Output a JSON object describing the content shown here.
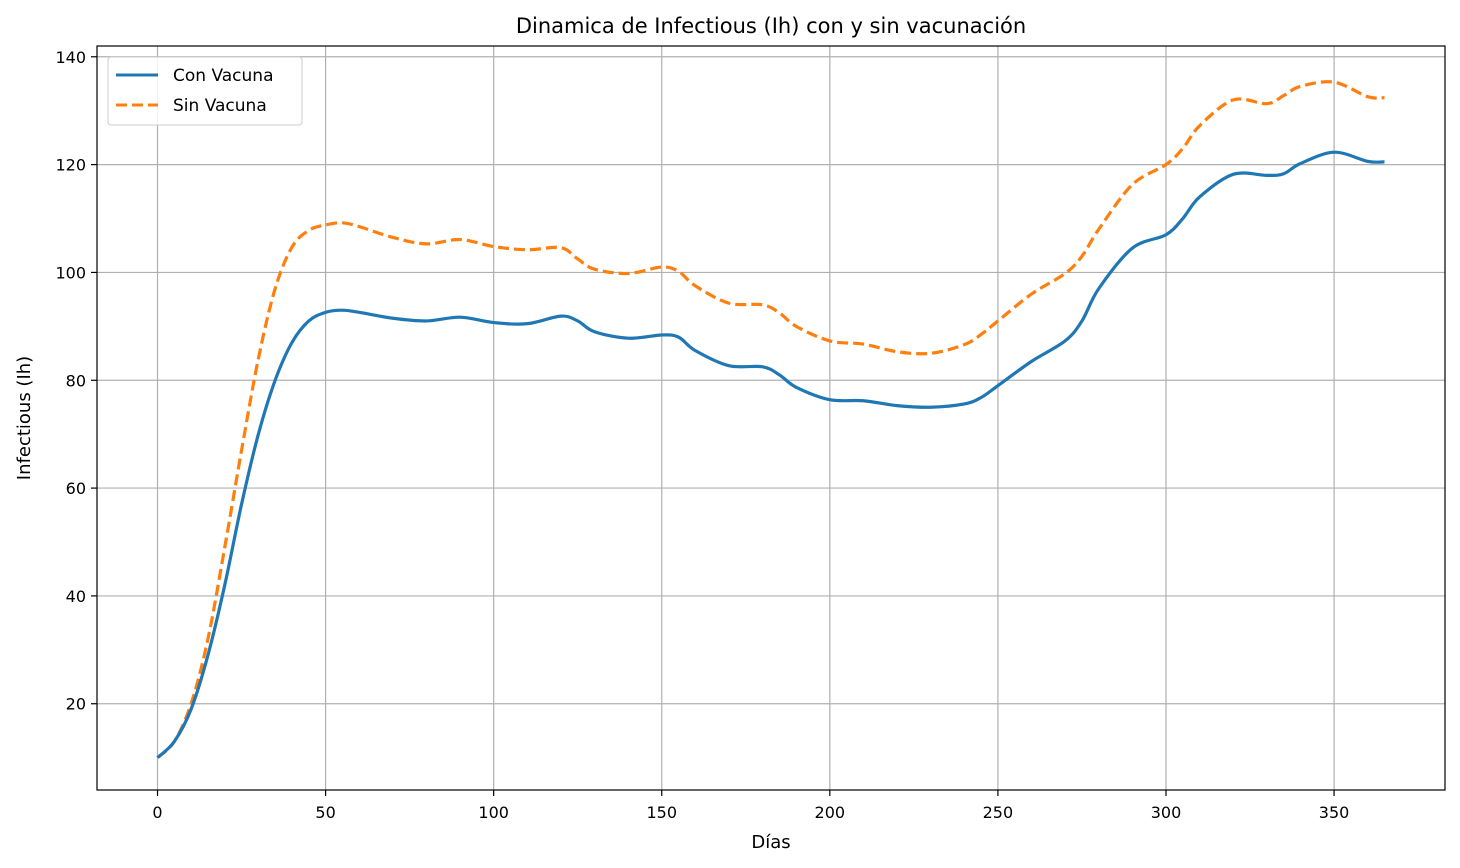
{
  "chart_data": {
    "type": "line",
    "title": "Dinamica de Infectious (Ih) con y sin vacunación",
    "xlabel": "Días",
    "ylabel": "Infectious (Ih)",
    "xlim": [
      -18,
      383
    ],
    "ylim": [
      4,
      142
    ],
    "xticks": [
      0,
      50,
      100,
      150,
      200,
      250,
      300,
      350
    ],
    "yticks": [
      20,
      40,
      60,
      80,
      100,
      120,
      140
    ],
    "grid": true,
    "legend_position": "top-left",
    "series": [
      {
        "name": "Con Vacuna",
        "color": "#1f77b4",
        "style": "solid",
        "x": [
          0,
          5,
          10,
          15,
          20,
          25,
          30,
          35,
          40,
          45,
          50,
          55,
          60,
          70,
          80,
          90,
          100,
          110,
          120,
          125,
          130,
          140,
          150,
          155,
          160,
          170,
          180,
          185,
          190,
          200,
          210,
          220,
          230,
          240,
          245,
          250,
          260,
          270,
          275,
          280,
          290,
          300,
          305,
          310,
          320,
          330,
          335,
          340,
          350,
          360,
          365
        ],
        "y": [
          10,
          13,
          19,
          29,
          42,
          57,
          70,
          80,
          87,
          91,
          92.6,
          93,
          92.6,
          91.5,
          91,
          91.7,
          90.7,
          90.5,
          91.9,
          91,
          89,
          87.8,
          88.4,
          88,
          85.5,
          82.7,
          82.5,
          81,
          78.7,
          76.4,
          76.2,
          75.3,
          75,
          75.6,
          76.8,
          79,
          83.5,
          87.3,
          91,
          97,
          104.5,
          107,
          110,
          114,
          118.2,
          118,
          118.3,
          120.2,
          122.3,
          120.6,
          120.5
        ]
      },
      {
        "name": "Sin Vacuna",
        "color": "#ff7f0e",
        "style": "dashed",
        "x": [
          0,
          5,
          10,
          15,
          20,
          25,
          30,
          35,
          40,
          45,
          50,
          55,
          60,
          70,
          80,
          90,
          100,
          110,
          120,
          125,
          130,
          140,
          150,
          155,
          160,
          170,
          180,
          185,
          190,
          200,
          210,
          220,
          230,
          240,
          245,
          250,
          260,
          270,
          275,
          280,
          290,
          300,
          305,
          310,
          320,
          330,
          335,
          340,
          350,
          360,
          365
        ],
        "y": [
          10,
          13,
          20,
          32,
          49,
          67,
          84,
          97,
          104.7,
          107.8,
          108.8,
          109.2,
          108.5,
          106.5,
          105.3,
          106.1,
          104.8,
          104.2,
          104.6,
          102.5,
          100.6,
          99.8,
          101,
          100.2,
          97.5,
          94.3,
          94,
          92.5,
          90,
          87.3,
          86.7,
          85.3,
          85,
          86.6,
          88.5,
          91,
          96,
          99.8,
          103,
          108,
          116.3,
          120,
          123,
          127.2,
          132,
          131.3,
          132.8,
          134.5,
          135.3,
          132.6,
          132.4
        ]
      }
    ]
  }
}
